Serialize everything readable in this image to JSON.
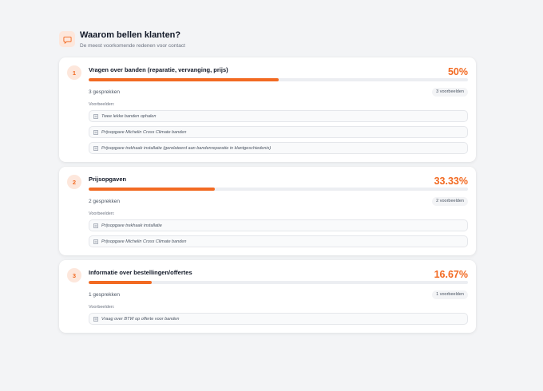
{
  "header": {
    "icon": "chat-bubble-icon",
    "title": "Waarom bellen klanten?",
    "subtitle": "De meest voorkomende redenen voor contact"
  },
  "colors": {
    "accent": "#f26a22",
    "accent_soft": "#fde7dc",
    "track": "#eceef2",
    "background": "#f3f4f6"
  },
  "examples_label": "Voorbeelden:",
  "reasons": [
    {
      "rank": "1",
      "title": "Vragen over banden (reparatie, vervanging, prijs)",
      "percent": "50%",
      "fill": 0.5,
      "count": "3 gesprekken",
      "badge": "3 voorbeelden",
      "examples": [
        "Twee lekke banden ophalen",
        "Prijsopgave Michelin Cross Climate banden",
        "Prijsopgave trekhaak installatie (gerelateerd aan bandenreparatie in klantgeschiedenis)"
      ]
    },
    {
      "rank": "2",
      "title": "Prijsopgaven",
      "percent": "33.33%",
      "fill": 0.3333,
      "count": "2 gesprekken",
      "badge": "2 voorbeelden",
      "examples": [
        "Prijsopgave trekhaak installatie",
        "Prijsopgave Michelin Cross Climate banden"
      ]
    },
    {
      "rank": "3",
      "title": "Informatie over bestellingen/offertes",
      "percent": "16.67%",
      "fill": 0.1667,
      "count": "1 gesprekken",
      "badge": "1 voorbeelden",
      "examples": [
        "Vraag over BTW op offerte voor banden"
      ]
    }
  ]
}
